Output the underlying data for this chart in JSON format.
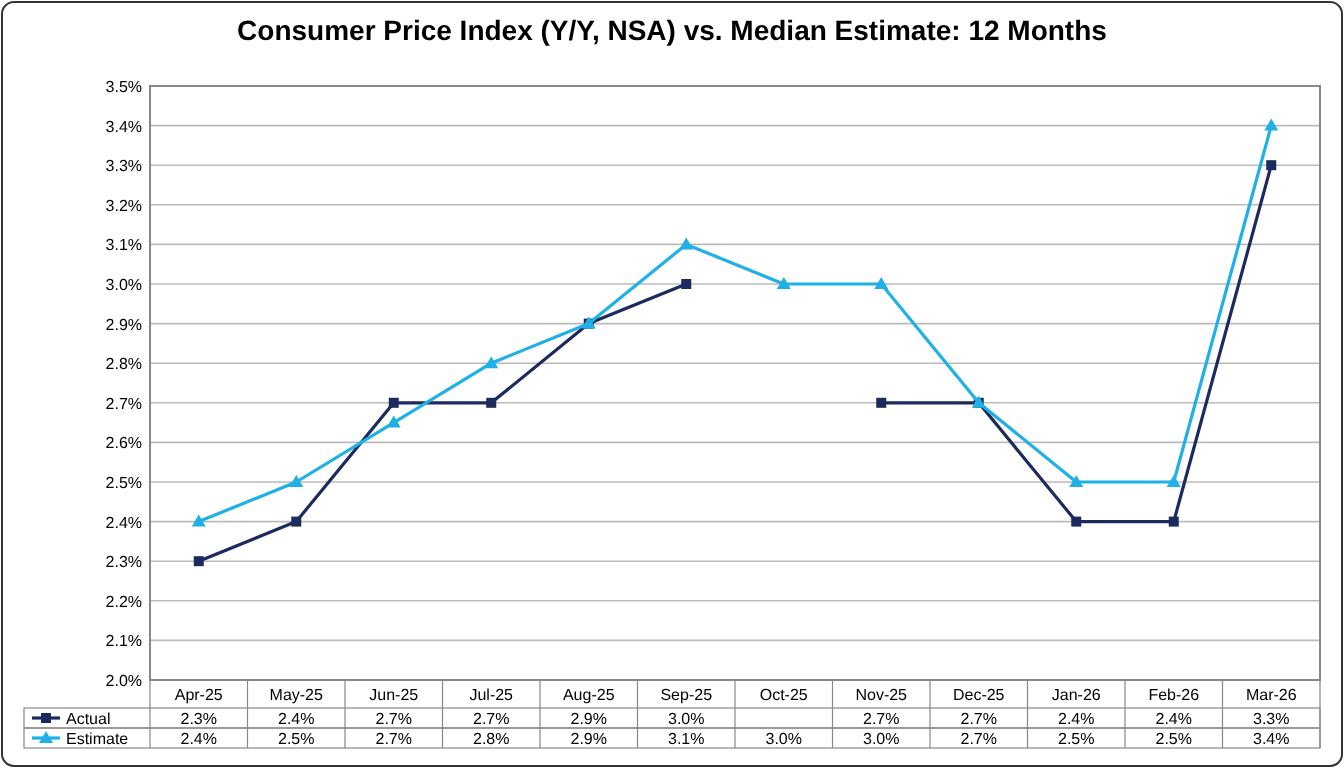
{
  "chart_data": {
    "type": "line",
    "title": "Consumer Price Index (Y/Y, NSA) vs. Median Estimate: 12 Months",
    "categories": [
      "Apr-25",
      "May-25",
      "Jun-25",
      "Jul-25",
      "Aug-25",
      "Sep-25",
      "Oct-25",
      "Nov-25",
      "Dec-25",
      "Jan-26",
      "Feb-26",
      "Mar-26"
    ],
    "series": [
      {
        "name": "Actual",
        "color": "#1c2a5e",
        "marker": "square",
        "values": [
          2.3,
          2.4,
          2.7,
          2.7,
          2.9,
          3.0,
          null,
          2.7,
          2.7,
          2.4,
          2.4,
          3.3
        ],
        "value_labels": [
          "2.3%",
          "2.4%",
          "2.7%",
          "2.7%",
          "2.9%",
          "3.0%",
          null,
          "2.7%",
          "2.7%",
          "2.4%",
          "2.4%",
          "3.3%"
        ]
      },
      {
        "name": "Estimate",
        "color": "#1fb0e6",
        "marker": "triangle",
        "values": [
          2.4,
          2.5,
          2.65,
          2.8,
          2.9,
          3.1,
          3.0,
          3.0,
          2.7,
          2.5,
          2.5,
          3.4
        ],
        "value_labels": [
          "2.4%",
          "2.5%",
          "2.7%",
          "2.8%",
          "2.9%",
          "3.1%",
          "3.0%",
          "3.0%",
          "2.7%",
          "2.5%",
          "2.5%",
          "3.4%"
        ]
      }
    ],
    "ylim": [
      2.0,
      3.5
    ],
    "yticks": [
      {
        "value": 2.0,
        "label": "2.0%"
      },
      {
        "value": 2.1,
        "label": "2.1%"
      },
      {
        "value": 2.2,
        "label": "2.2%"
      },
      {
        "value": 2.3,
        "label": "2.3%"
      },
      {
        "value": 2.4,
        "label": "2.4%"
      },
      {
        "value": 2.5,
        "label": "2.5%"
      },
      {
        "value": 2.6,
        "label": "2.6%"
      },
      {
        "value": 2.7,
        "label": "2.7%"
      },
      {
        "value": 2.8,
        "label": "2.8%"
      },
      {
        "value": 2.9,
        "label": "2.9%"
      },
      {
        "value": 3.0,
        "label": "3.0%"
      },
      {
        "value": 3.1,
        "label": "3.1%"
      },
      {
        "value": 3.2,
        "label": "3.2%"
      },
      {
        "value": 3.3,
        "label": "3.3%"
      },
      {
        "value": 3.4,
        "label": "3.4%"
      },
      {
        "value": 3.5,
        "label": "3.5%"
      }
    ],
    "grid": "y",
    "legend": "bottom",
    "line_style": "solid"
  }
}
